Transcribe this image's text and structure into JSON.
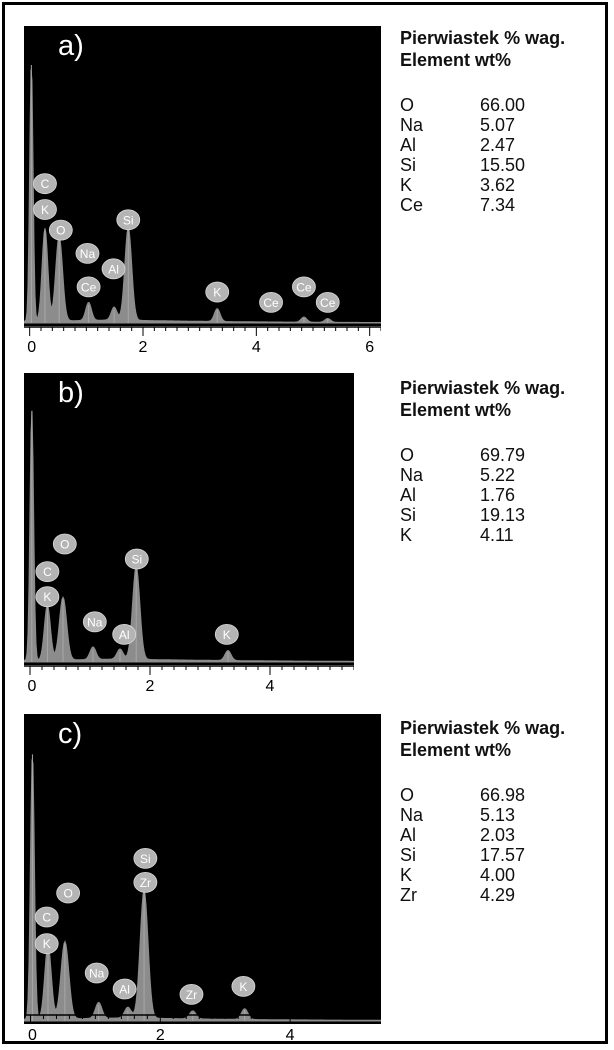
{
  "colors": {
    "plot_background": "#000000",
    "spectrum": "#8c8c8c",
    "badge": "#b4b4b4",
    "badge_text": "#ffffff"
  },
  "chart_data": [
    {
      "type": "area",
      "panel_label": "a)",
      "xlim": [
        -0.1,
        6.2
      ],
      "xticks": [
        0,
        2,
        4,
        6
      ],
      "peaks": [
        {
          "x": 0.03,
          "y": 1.0,
          "w": 0.03
        },
        {
          "x": 0.27,
          "y": 0.36,
          "w": 0.05
        },
        {
          "x": 0.52,
          "y": 0.33,
          "w": 0.06
        },
        {
          "x": 1.04,
          "y": 0.07,
          "w": 0.05
        },
        {
          "x": 1.49,
          "y": 0.05,
          "w": 0.05
        },
        {
          "x": 1.74,
          "y": 0.36,
          "w": 0.06
        },
        {
          "x": 3.31,
          "y": 0.05,
          "w": 0.05
        },
        {
          "x": 4.84,
          "y": 0.02,
          "w": 0.05
        },
        {
          "x": 5.26,
          "y": 0.015,
          "w": 0.05
        }
      ],
      "badges": [
        {
          "symbol": "C",
          "x": 0.27,
          "y": 0.54
        },
        {
          "symbol": "K",
          "x": 0.27,
          "y": 0.44
        },
        {
          "symbol": "O",
          "x": 0.55,
          "y": 0.36
        },
        {
          "symbol": "Si",
          "x": 1.74,
          "y": 0.4
        },
        {
          "symbol": "Na",
          "x": 1.02,
          "y": 0.27
        },
        {
          "symbol": "Al",
          "x": 1.48,
          "y": 0.21
        },
        {
          "symbol": "Ce",
          "x": 1.04,
          "y": 0.14
        },
        {
          "symbol": "K",
          "x": 3.31,
          "y": 0.12
        },
        {
          "symbol": "Ce",
          "x": 4.84,
          "y": 0.14
        },
        {
          "symbol": "Ce",
          "x": 4.26,
          "y": 0.08
        },
        {
          "symbol": "Ce",
          "x": 5.26,
          "y": 0.08
        }
      ],
      "composition": {
        "header_pl": "Pierwiastek % wag.",
        "header_en": "Element wt%",
        "rows": [
          {
            "element": "O",
            "value": "66.00"
          },
          {
            "element": "Na",
            "value": "5.07"
          },
          {
            "element": "Al",
            "value": "2.47"
          },
          {
            "element": "Si",
            "value": "15.50"
          },
          {
            "element": "K",
            "value": "3.62"
          },
          {
            "element": "Ce",
            "value": "7.34"
          }
        ]
      }
    },
    {
      "type": "area",
      "panel_label": "b)",
      "xlim": [
        -0.1,
        5.4
      ],
      "xticks": [
        0,
        2,
        4
      ],
      "peaks": [
        {
          "x": 0.03,
          "y": 1.0,
          "w": 0.03
        },
        {
          "x": 0.29,
          "y": 0.22,
          "w": 0.05
        },
        {
          "x": 0.55,
          "y": 0.25,
          "w": 0.06
        },
        {
          "x": 1.05,
          "y": 0.05,
          "w": 0.05
        },
        {
          "x": 1.5,
          "y": 0.04,
          "w": 0.05
        },
        {
          "x": 1.77,
          "y": 0.37,
          "w": 0.06
        },
        {
          "x": 3.3,
          "y": 0.04,
          "w": 0.05
        }
      ],
      "badges": [
        {
          "symbol": "O",
          "x": 0.58,
          "y": 0.47
        },
        {
          "symbol": "Si",
          "x": 1.78,
          "y": 0.41
        },
        {
          "symbol": "C",
          "x": 0.29,
          "y": 0.36
        },
        {
          "symbol": "K",
          "x": 0.29,
          "y": 0.26
        },
        {
          "symbol": "Na",
          "x": 1.08,
          "y": 0.16
        },
        {
          "symbol": "Al",
          "x": 1.57,
          "y": 0.11
        },
        {
          "symbol": "K",
          "x": 3.28,
          "y": 0.11
        }
      ],
      "composition": {
        "header_pl": "Pierwiastek % wag.",
        "header_en": "Element wt%",
        "rows": [
          {
            "element": "O",
            "value": "69.79"
          },
          {
            "element": "Na",
            "value": "5.22"
          },
          {
            "element": "Al",
            "value": "1.76"
          },
          {
            "element": "Si",
            "value": "19.13"
          },
          {
            "element": "K",
            "value": "4.11"
          }
        ]
      }
    },
    {
      "type": "area",
      "panel_label": "c)",
      "xlim": [
        -0.1,
        5.4
      ],
      "xticks": [
        0,
        2,
        4
      ],
      "peaks": [
        {
          "x": 0.03,
          "y": 1.0,
          "w": 0.03
        },
        {
          "x": 0.27,
          "y": 0.28,
          "w": 0.05
        },
        {
          "x": 0.53,
          "y": 0.29,
          "w": 0.06
        },
        {
          "x": 1.05,
          "y": 0.06,
          "w": 0.05
        },
        {
          "x": 1.5,
          "y": 0.04,
          "w": 0.05
        },
        {
          "x": 1.75,
          "y": 0.48,
          "w": 0.06
        },
        {
          "x": 2.5,
          "y": 0.03,
          "w": 0.05
        },
        {
          "x": 3.3,
          "y": 0.04,
          "w": 0.05
        }
      ],
      "badges": [
        {
          "symbol": "Si",
          "x": 1.77,
          "y": 0.61
        },
        {
          "symbol": "Zr",
          "x": 1.77,
          "y": 0.52
        },
        {
          "symbol": "O",
          "x": 0.58,
          "y": 0.48
        },
        {
          "symbol": "C",
          "x": 0.25,
          "y": 0.39
        },
        {
          "symbol": "K",
          "x": 0.25,
          "y": 0.29
        },
        {
          "symbol": "Na",
          "x": 1.02,
          "y": 0.18
        },
        {
          "symbol": "Al",
          "x": 1.45,
          "y": 0.12
        },
        {
          "symbol": "Zr",
          "x": 2.48,
          "y": 0.1
        },
        {
          "symbol": "K",
          "x": 3.28,
          "y": 0.13
        }
      ],
      "composition": {
        "header_pl": "Pierwiastek % wag.",
        "header_en": "Element wt%",
        "rows": [
          {
            "element": "O",
            "value": "66.98"
          },
          {
            "element": "Na",
            "value": "5.13"
          },
          {
            "element": "Al",
            "value": "2.03"
          },
          {
            "element": "Si",
            "value": "17.57"
          },
          {
            "element": "K",
            "value": "4.00"
          },
          {
            "element": "Zr",
            "value": "4.29"
          }
        ]
      }
    }
  ]
}
